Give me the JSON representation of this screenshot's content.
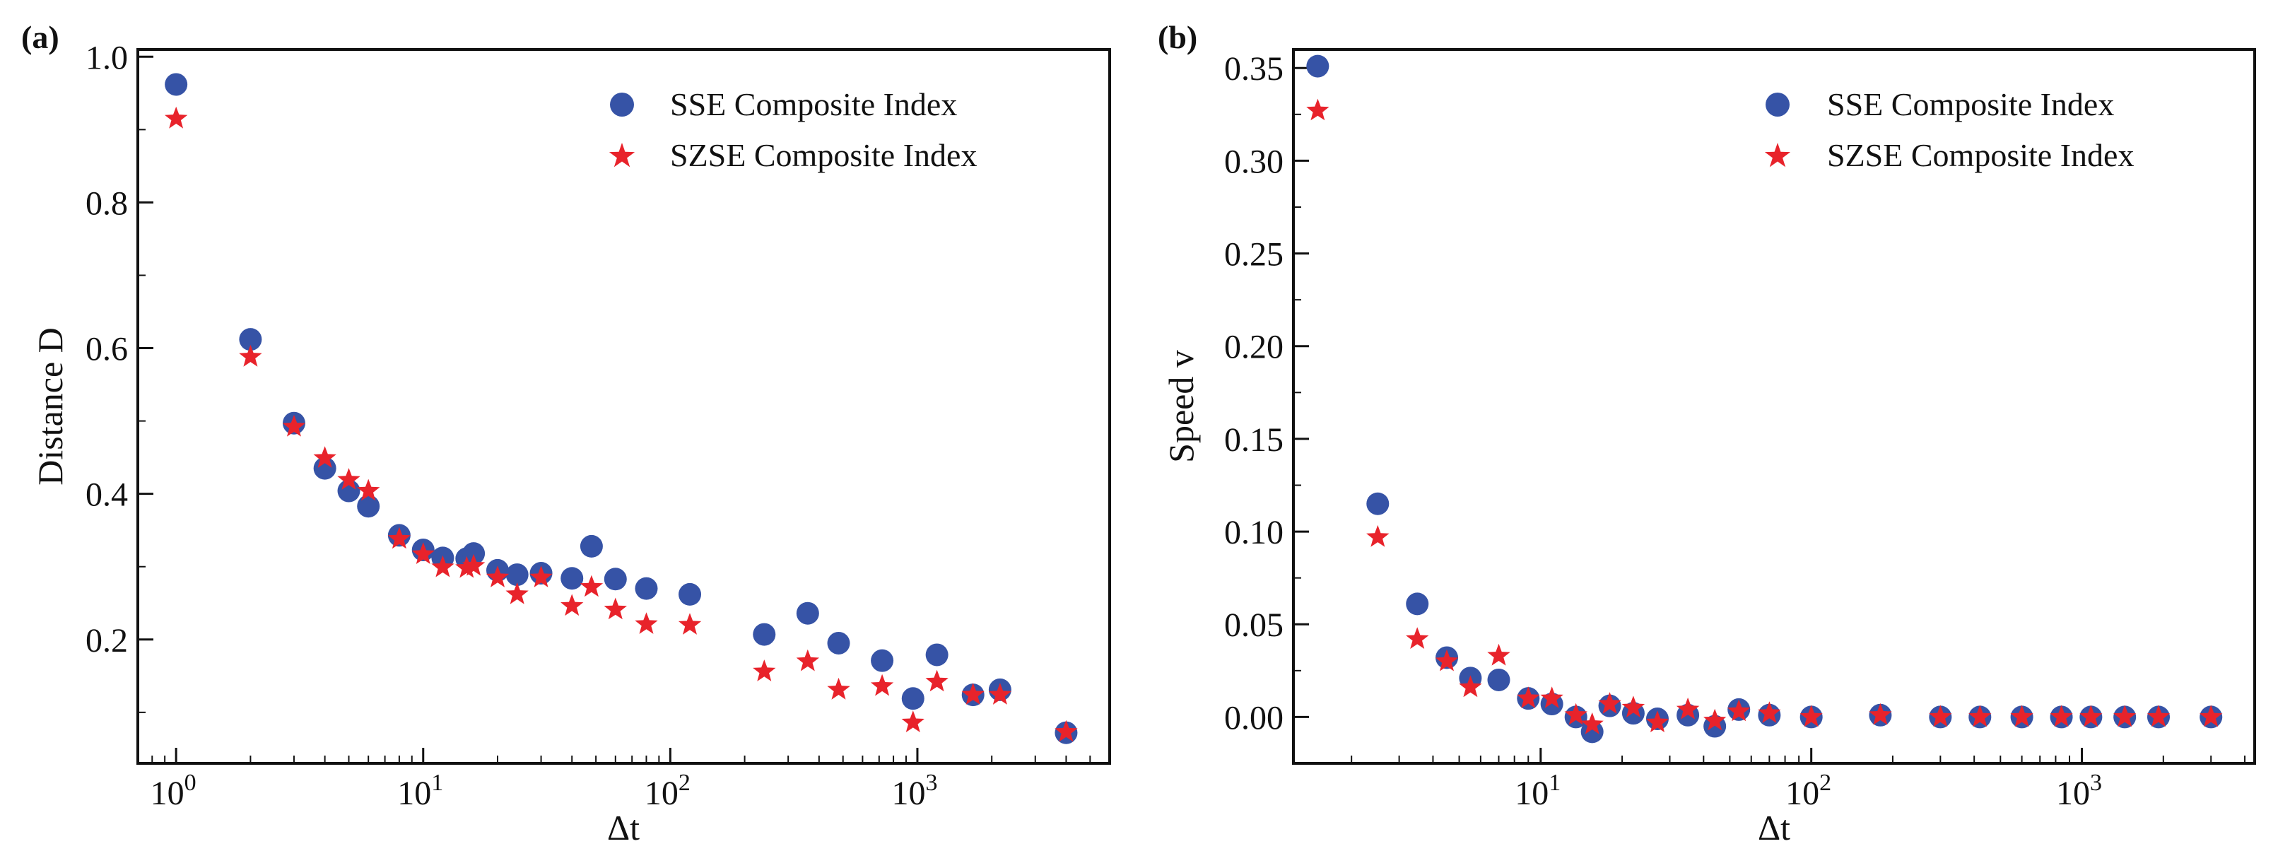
{
  "figure": {
    "panels": [
      {
        "id": "a",
        "label": "(a)",
        "ylabel": "Distance D",
        "xlabel": "Δt",
        "legend": [
          "SSE Composite Index",
          "SZSE Composite Index"
        ]
      },
      {
        "id": "b",
        "label": "(b)",
        "ylabel": "Speed v",
        "xlabel": "Δt",
        "legend": [
          "SSE Composite Index",
          "SZSE Composite Index"
        ]
      }
    ]
  },
  "chart_data": [
    {
      "type": "scatter",
      "panel_label": "(a)",
      "title": "",
      "xlabel": "Δt",
      "ylabel": "Distance D",
      "x_scale": "log",
      "xlim": [
        0.7,
        6000
      ],
      "ylim": [
        0.03,
        1.01
      ],
      "yticks": [
        0.2,
        0.4,
        0.6,
        0.8,
        1.0
      ],
      "ytick_labels": [
        "0.2",
        "0.4",
        "0.6",
        "0.8",
        "1.0"
      ],
      "xticks": [
        1,
        10,
        100,
        1000
      ],
      "xtick_labels": [
        "10^0",
        "10^1",
        "10^2",
        "10^3"
      ],
      "legend_position": "top-right",
      "colors": {
        "SSE Composite Index": "#3653a6",
        "SZSE Composite Index": "#e8232b"
      },
      "series": [
        {
          "name": "SSE Composite Index",
          "marker": "circle",
          "x": [
            1,
            2,
            3,
            4,
            5,
            6,
            8,
            10,
            12,
            15,
            16,
            20,
            24,
            30,
            40,
            48,
            60,
            80,
            120,
            240,
            360,
            480,
            720,
            960,
            1200,
            1680,
            2160,
            4000
          ],
          "y": [
            0.962,
            0.612,
            0.497,
            0.435,
            0.404,
            0.383,
            0.343,
            0.323,
            0.312,
            0.311,
            0.318,
            0.295,
            0.289,
            0.291,
            0.284,
            0.328,
            0.283,
            0.27,
            0.262,
            0.207,
            0.236,
            0.195,
            0.171,
            0.119,
            0.179,
            0.124,
            0.131,
            0.072
          ]
        },
        {
          "name": "SZSE Composite Index",
          "marker": "star",
          "x": [
            1,
            2,
            3,
            4,
            5,
            6,
            8,
            10,
            12,
            15,
            16,
            20,
            24,
            30,
            40,
            48,
            60,
            80,
            120,
            240,
            360,
            480,
            720,
            960,
            1200,
            1680,
            2160,
            4000
          ],
          "y": [
            0.915,
            0.588,
            0.492,
            0.449,
            0.419,
            0.404,
            0.338,
            0.317,
            0.299,
            0.298,
            0.301,
            0.285,
            0.262,
            0.285,
            0.246,
            0.272,
            0.241,
            0.221,
            0.22,
            0.156,
            0.17,
            0.131,
            0.136,
            0.086,
            0.142,
            0.124,
            0.124,
            0.073
          ]
        }
      ]
    },
    {
      "type": "scatter",
      "panel_label": "(b)",
      "title": "",
      "xlabel": "Δt",
      "ylabel": "Speed v",
      "x_scale": "log",
      "xlim": [
        1.22,
        4350
      ],
      "ylim": [
        -0.025,
        0.36
      ],
      "yticks": [
        0.0,
        0.05,
        0.1,
        0.15,
        0.2,
        0.25,
        0.3,
        0.35
      ],
      "ytick_labels": [
        "0.00",
        "0.05",
        "0.10",
        "0.15",
        "0.20",
        "0.25",
        "0.30",
        "0.35"
      ],
      "xticks": [
        10,
        100,
        1000
      ],
      "xtick_labels": [
        "10^1",
        "10^2",
        "10^3"
      ],
      "legend_position": "top-right",
      "colors": {
        "SSE Composite Index": "#3653a6",
        "SZSE Composite Index": "#e8232b"
      },
      "series": [
        {
          "name": "SSE Composite Index",
          "marker": "circle",
          "x": [
            1.5,
            2.5,
            3.5,
            4.5,
            5.5,
            7,
            9,
            11,
            13.5,
            15.5,
            18,
            22,
            27,
            35,
            44,
            54,
            70,
            100,
            180,
            300,
            420,
            600,
            840,
            1080,
            1440,
            1920,
            3000
          ],
          "y": [
            0.351,
            0.115,
            0.061,
            0.032,
            0.021,
            0.02,
            0.01,
            0.007,
            0.0,
            -0.008,
            0.006,
            0.002,
            -0.001,
            0.001,
            -0.005,
            0.004,
            0.001,
            0.0,
            0.001,
            0.0,
            0.0,
            0.0,
            0.0,
            0.0,
            0.0,
            0.0,
            0.0
          ]
        },
        {
          "name": "SZSE Composite Index",
          "marker": "star",
          "x": [
            1.5,
            2.5,
            3.5,
            4.5,
            5.5,
            7,
            9,
            11,
            13.5,
            15.5,
            18,
            22,
            27,
            35,
            44,
            54,
            70,
            100,
            180,
            300,
            420,
            600,
            840,
            1080,
            1440,
            1920,
            3000
          ],
          "y": [
            0.327,
            0.097,
            0.042,
            0.03,
            0.016,
            0.033,
            0.01,
            0.01,
            0.001,
            -0.004,
            0.007,
            0.005,
            -0.003,
            0.004,
            -0.002,
            0.003,
            0.002,
            0.0,
            0.001,
            0.0,
            0.0,
            0.0,
            0.0,
            0.0,
            0.0,
            0.0,
            0.0
          ]
        }
      ]
    }
  ]
}
